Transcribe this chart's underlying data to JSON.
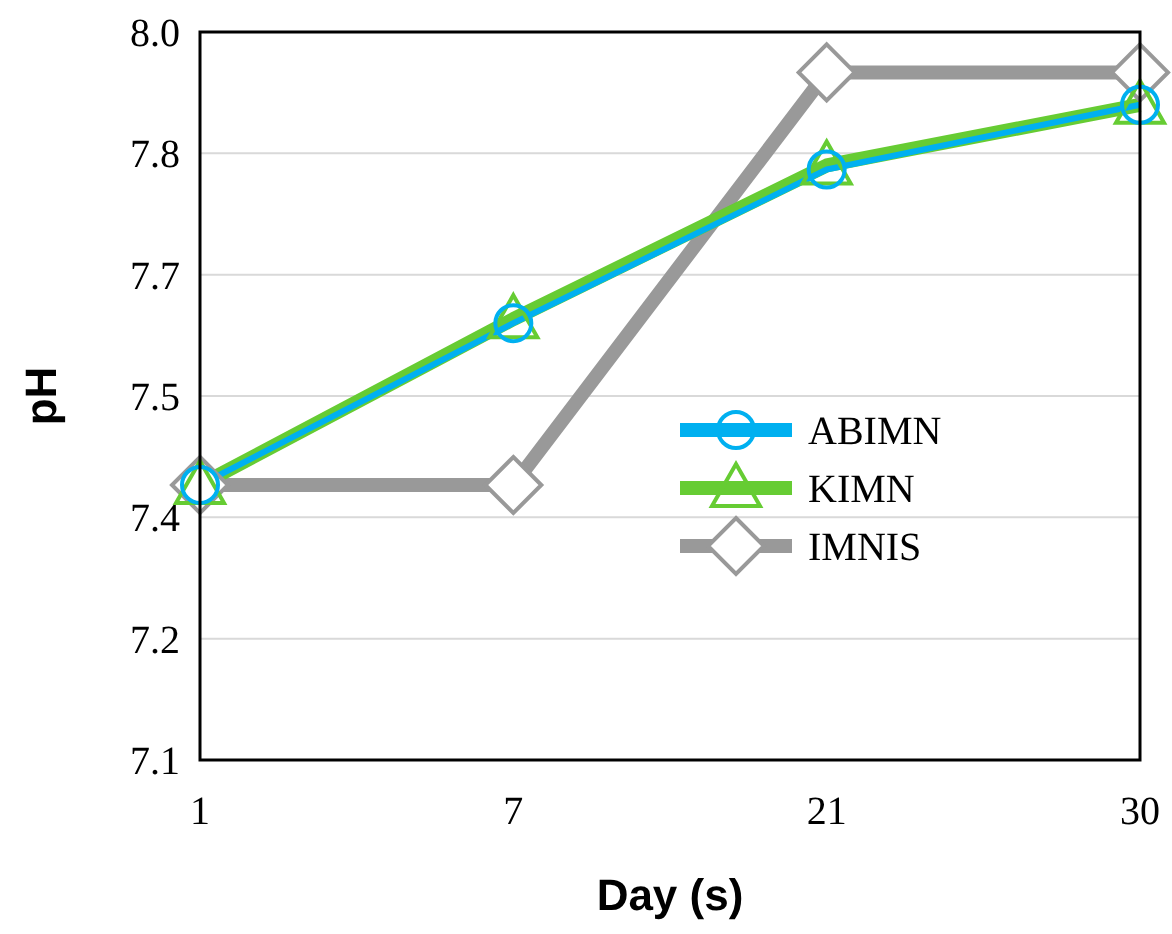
{
  "chart_data": {
    "type": "line",
    "xlabel": "Day (s)",
    "ylabel": "pH",
    "categories": [
      "1",
      "7",
      "21",
      "30"
    ],
    "ylim": [
      7.1,
      8.0
    ],
    "yticks": [
      7.1,
      {
        "value": 7.25,
        "label": "7.2"
      },
      7.4,
      {
        "value": 7.55,
        "label": "7.5"
      },
      7.7,
      {
        "value": 7.85,
        "label": "7.8"
      },
      {
        "value": 8.0,
        "label": "8.0"
      }
    ],
    "grid": "y",
    "legend": "right",
    "line_style": "solid",
    "series": [
      {
        "name": "ABIMN",
        "color": "#00b0f0",
        "marker": "circle",
        "values": [
          7.44,
          7.64,
          7.83,
          7.91
        ]
      },
      {
        "name": "KIMN",
        "color": "#66cc33",
        "marker": "triangle",
        "values": [
          7.44,
          7.645,
          7.835,
          7.91
        ]
      },
      {
        "name": "IMNIS",
        "color": "#999999",
        "marker": "diamond",
        "values": [
          7.44,
          7.44,
          7.95,
          7.95
        ]
      }
    ]
  }
}
